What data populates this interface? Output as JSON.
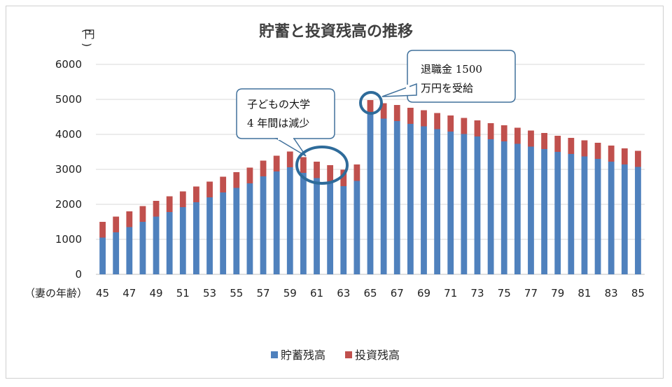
{
  "chart_data": {
    "type": "bar",
    "stacked": true,
    "title": "貯蓄と投資残高の推移",
    "ylabel": "円",
    "xlabel": "（妻の年齢）",
    "ylim": [
      0,
      6000
    ],
    "yticks": [
      0,
      1000,
      2000,
      3000,
      4000,
      5000,
      6000
    ],
    "categories": [
      45,
      46,
      47,
      48,
      49,
      50,
      51,
      52,
      53,
      54,
      55,
      56,
      57,
      58,
      59,
      60,
      61,
      62,
      63,
      64,
      65,
      66,
      67,
      68,
      69,
      70,
      71,
      72,
      73,
      74,
      75,
      76,
      77,
      78,
      79,
      80,
      81,
      82,
      83,
      84,
      85
    ],
    "xtick_labels": [
      "45",
      "47",
      "49",
      "51",
      "53",
      "55",
      "57",
      "59",
      "61",
      "63",
      "65",
      "67",
      "69",
      "71",
      "73",
      "75",
      "77",
      "79",
      "81",
      "83",
      "85"
    ],
    "series": [
      {
        "name": "貯蓄残高",
        "color": "#4f81bd",
        "values": [
          1050,
          1200,
          1350,
          1500,
          1650,
          1780,
          1920,
          2060,
          2200,
          2340,
          2470,
          2600,
          2800,
          2940,
          3060,
          2900,
          2750,
          2650,
          2520,
          2670,
          4600,
          4450,
          4380,
          4300,
          4230,
          4150,
          4080,
          4010,
          3940,
          3860,
          3800,
          3730,
          3650,
          3580,
          3500,
          3440,
          3370,
          3300,
          3220,
          3140,
          3070
        ]
      },
      {
        "name": "投資残高",
        "color": "#c0504d",
        "values": [
          450,
          450,
          450,
          450,
          450,
          450,
          450,
          450,
          450,
          450,
          450,
          450,
          450,
          450,
          450,
          450,
          470,
          470,
          470,
          470,
          380,
          440,
          460,
          460,
          460,
          460,
          460,
          460,
          460,
          460,
          460,
          460,
          460,
          460,
          460,
          460,
          460,
          460,
          460,
          460,
          460
        ]
      }
    ],
    "legend_position": "bottom",
    "annotations": [
      {
        "text_lines": [
          "子どもの大学",
          "4 年間は減少"
        ],
        "target_categories": [
          60,
          63
        ]
      },
      {
        "text_lines": [
          "退職金 1500",
          "万円を受給"
        ],
        "target_categories": [
          65
        ]
      }
    ]
  }
}
